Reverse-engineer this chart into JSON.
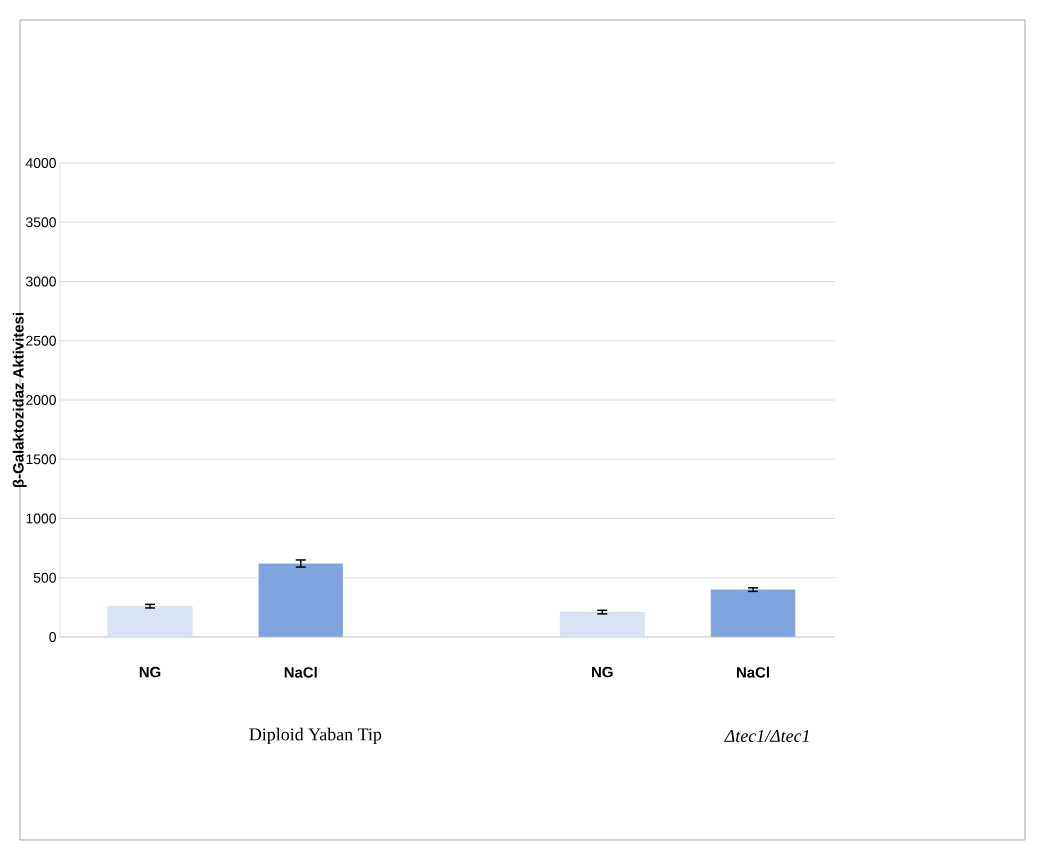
{
  "chart_data": {
    "type": "bar",
    "ylabel": "β-Galaktozidaz Aktivitesi",
    "categories": [
      "NG",
      "NaCl",
      null,
      "NG",
      "NaCl"
    ],
    "values": [
      260,
      620,
      null,
      210,
      400
    ],
    "errors": [
      15,
      30,
      null,
      15,
      15
    ],
    "colors": [
      "#d9e3f3",
      "#7ea3dd",
      "#ffffff",
      "#d9e3f3",
      "#7ea3dd"
    ],
    "ylim": [
      0,
      4000
    ],
    "yticks": [
      0,
      500,
      1000,
      1500,
      2000,
      2500,
      3000,
      3500,
      4000
    ],
    "grid": "y",
    "annotations": [
      "Diploid Yaban Tip",
      "*Δtec1/Δtec1*"
    ]
  }
}
